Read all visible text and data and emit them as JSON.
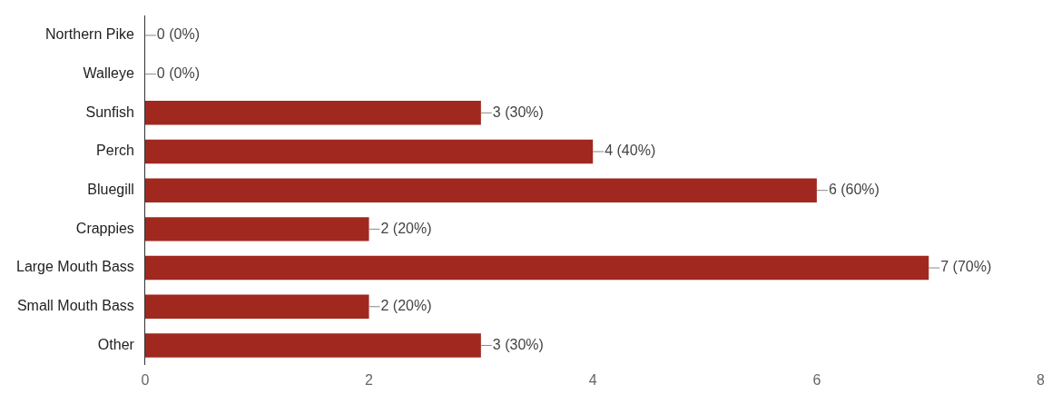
{
  "chart_data": {
    "type": "bar",
    "orientation": "horizontal",
    "categories": [
      "Northern Pike",
      "Walleye",
      "Sunfish",
      "Perch",
      "Bluegill",
      "Crappies",
      "Large Mouth Bass",
      "Small Mouth Bass",
      "Other"
    ],
    "values": [
      0,
      0,
      3,
      4,
      6,
      2,
      7,
      2,
      3
    ],
    "value_labels": [
      "0 (0%)",
      "0 (0%)",
      "3 (30%)",
      "4 (40%)",
      "6 (60%)",
      "2 (20%)",
      "7 (70%)",
      "2 (20%)",
      "3 (30%)"
    ],
    "color": "#a0281e",
    "xlim": [
      0,
      8
    ],
    "xticks": [
      0,
      2,
      4,
      6,
      8
    ],
    "grid": false,
    "legend": false
  }
}
